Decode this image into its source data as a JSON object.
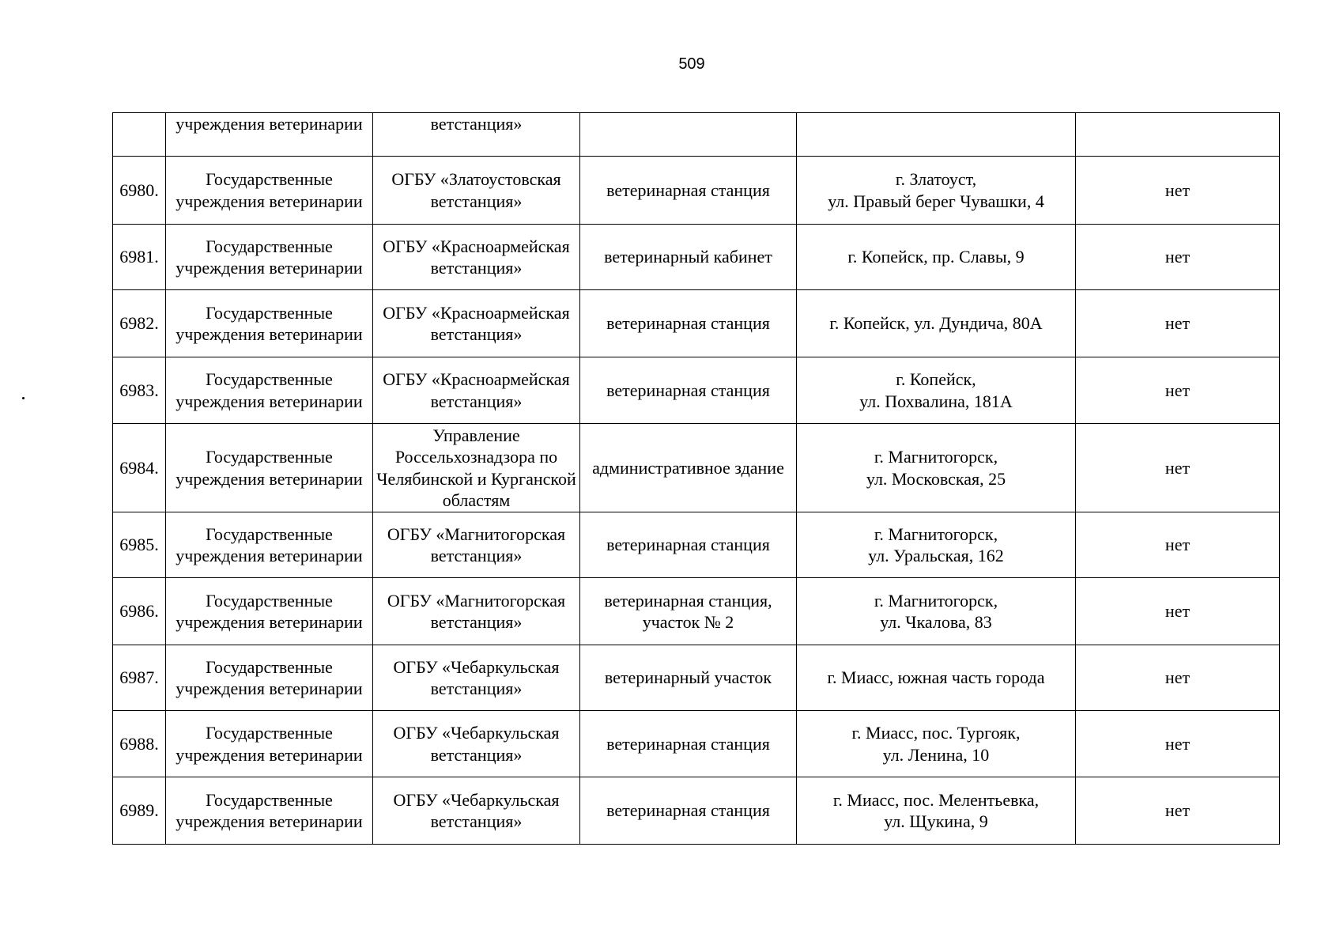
{
  "page_number": "509",
  "continued_row": {
    "col2": "учреждения ветеринарии",
    "col3": "ветстанция»"
  },
  "rows": [
    {
      "num": "6980.",
      "category": "Государственные учреждения ветеринарии",
      "org": "ОГБУ «Златоустовская ветстанция»",
      "type": "ветеринарная станция",
      "address": [
        "г. Златоуст,",
        "ул. Правый берег Чувашки, 4"
      ],
      "flag": "нет"
    },
    {
      "num": "6981.",
      "category": "Государственные учреждения ветеринарии",
      "org": "ОГБУ «Красноармейская ветстанция»",
      "type": "ветеринарный кабинет",
      "address": [
        "г. Копейск, пр. Славы, 9"
      ],
      "flag": "нет"
    },
    {
      "num": "6982.",
      "category": "Государственные учреждения ветеринарии",
      "org": "ОГБУ «Красноармейская ветстанция»",
      "type": "ветеринарная станция",
      "address": [
        "г. Копейск, ул. Дундича, 80А"
      ],
      "flag": "нет"
    },
    {
      "num": "6983.",
      "category": "Государственные учреждения ветеринарии",
      "org": "ОГБУ «Красноармейская ветстанция»",
      "type": "ветеринарная станция",
      "address": [
        "г. Копейск,",
        "ул. Похвалина, 181А"
      ],
      "flag": "нет"
    },
    {
      "num": "6984.",
      "category": "Государственные учреждения ветеринарии",
      "org": "Управление Россельхознадзора по Челябинской и Курганской областям",
      "type": "административное здание",
      "address": [
        "г. Магнитогорск,",
        "ул. Московская, 25"
      ],
      "flag": "нет"
    },
    {
      "num": "6985.",
      "category": "Государственные учреждения ветеринарии",
      "org": "ОГБУ «Магнитогорская ветстанция»",
      "type": "ветеринарная станция",
      "address": [
        "г. Магнитогорск,",
        "ул. Уральская, 162"
      ],
      "flag": "нет"
    },
    {
      "num": "6986.",
      "category": "Государственные учреждения ветеринарии",
      "org": "ОГБУ «Магнитогорская ветстанция»",
      "type": "ветеринарная станция, участок № 2",
      "address": [
        "г. Магнитогорск,",
        "ул. Чкалова, 83"
      ],
      "flag": "нет"
    },
    {
      "num": "6987.",
      "category": "Государственные учреждения ветеринарии",
      "org": "ОГБУ «Чебаркульская ветстанция»",
      "type": "ветеринарный участок",
      "address": [
        "г. Миасс, южная часть города"
      ],
      "flag": "нет"
    },
    {
      "num": "6988.",
      "category": "Государственные учреждения ветеринарии",
      "org": "ОГБУ «Чебаркульская ветстанция»",
      "type": "ветеринарная станция",
      "address": [
        "г. Миасс, пос. Тургояк,",
        "ул. Ленина, 10"
      ],
      "flag": "нет"
    },
    {
      "num": "6989.",
      "category": "Государственные учреждения ветеринарии",
      "org": "ОГБУ «Чебаркульская ветстанция»",
      "type": "ветеринарная станция",
      "address": [
        "г. Миасс, пос. Мелентьевка,",
        "ул. Щукина, 9"
      ],
      "flag": "нет"
    }
  ]
}
